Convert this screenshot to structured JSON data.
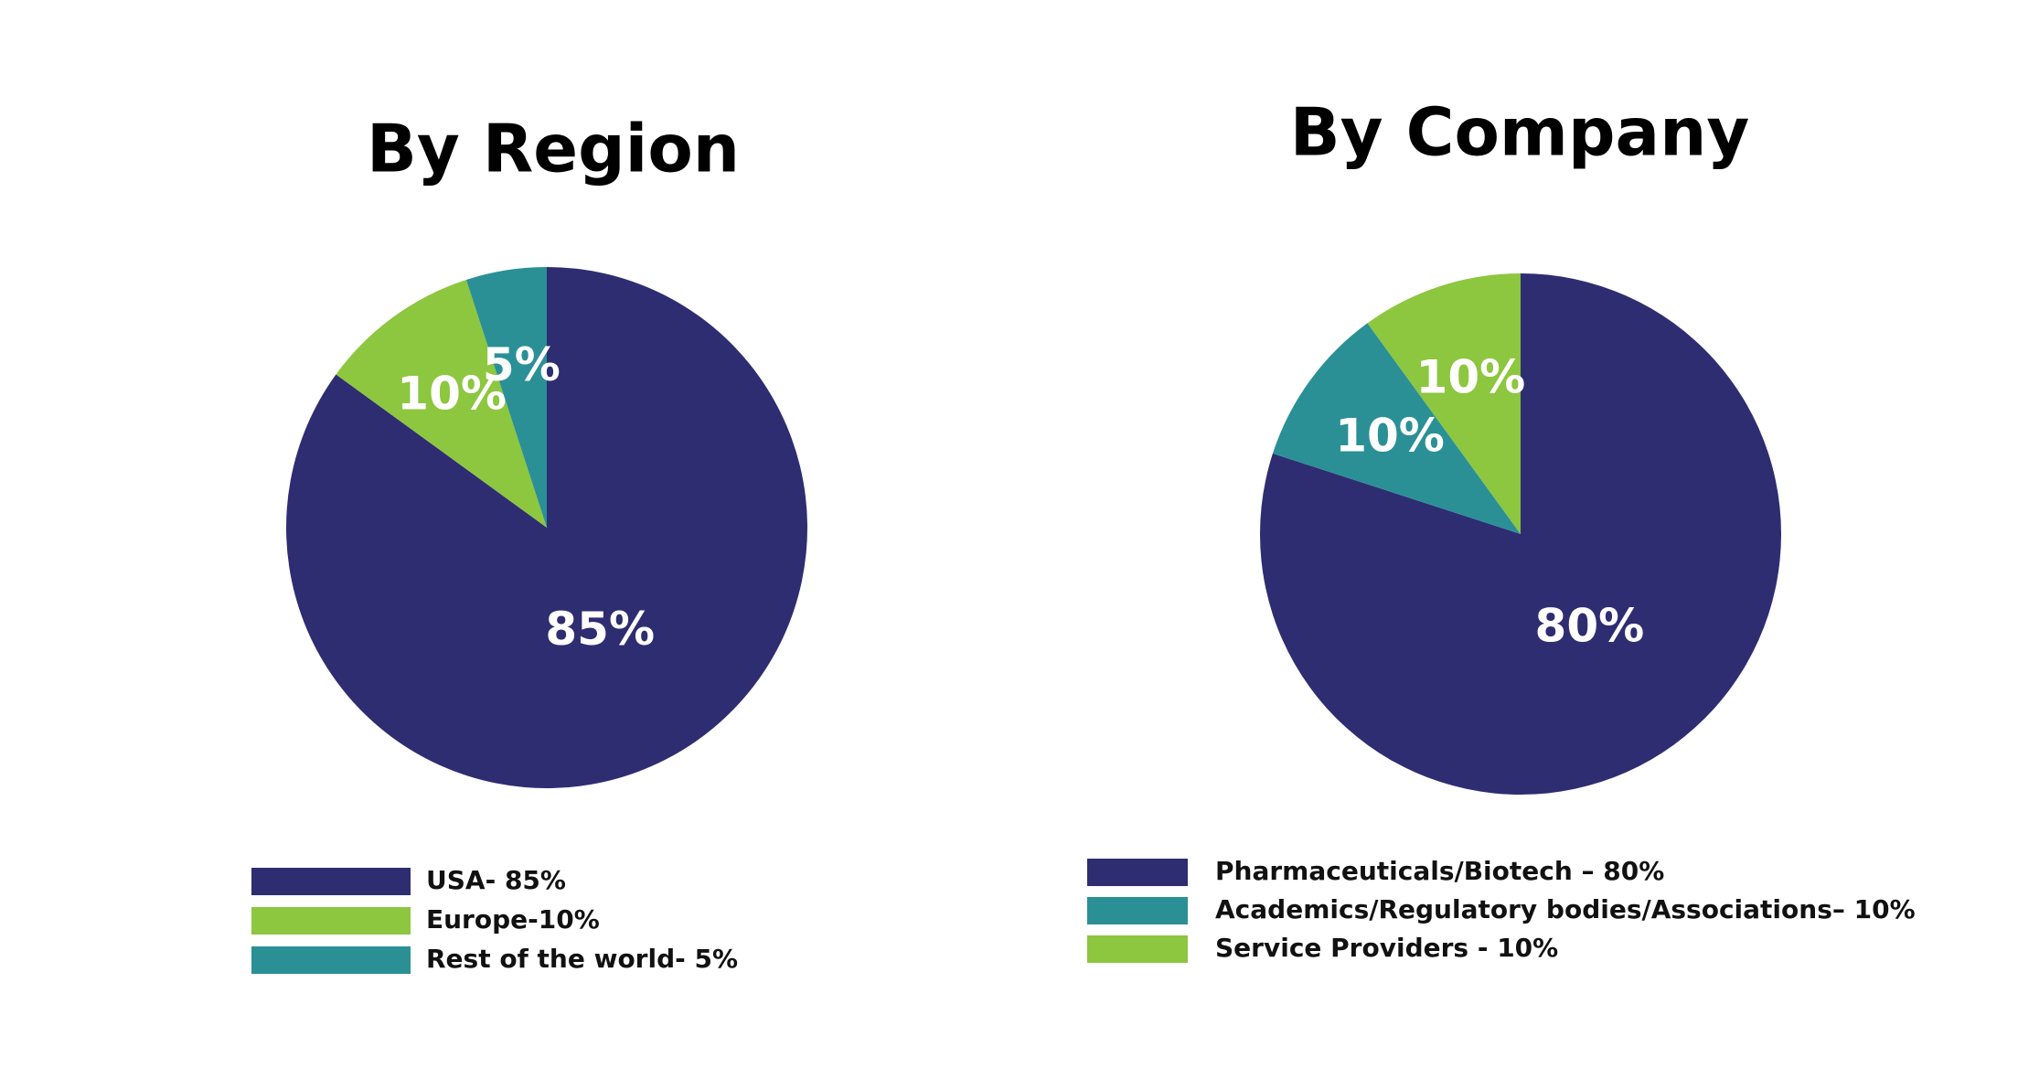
{
  "chart_data": [
    {
      "type": "pie",
      "title": "By Region",
      "categories": [
        "USA- 85%",
        "Europe-10%",
        "Rest of the world- 5%"
      ],
      "values": [
        85,
        10,
        5
      ],
      "value_labels": [
        "85%",
        "10%",
        "5%"
      ],
      "colors": [
        "#2e2d72",
        "#8dc63f",
        "#2a9096"
      ]
    },
    {
      "type": "pie",
      "title": "By Company",
      "categories": [
        "Pharmaceuticals/Biotech – 80%",
        "Academics/Regulatory bodies/Associations– 10%",
        "Service Providers - 10%"
      ],
      "values": [
        80,
        10,
        10
      ],
      "value_labels": [
        "80%",
        "10%",
        "10%"
      ],
      "colors": [
        "#2e2d72",
        "#2a9096",
        "#8dc63f"
      ]
    }
  ]
}
